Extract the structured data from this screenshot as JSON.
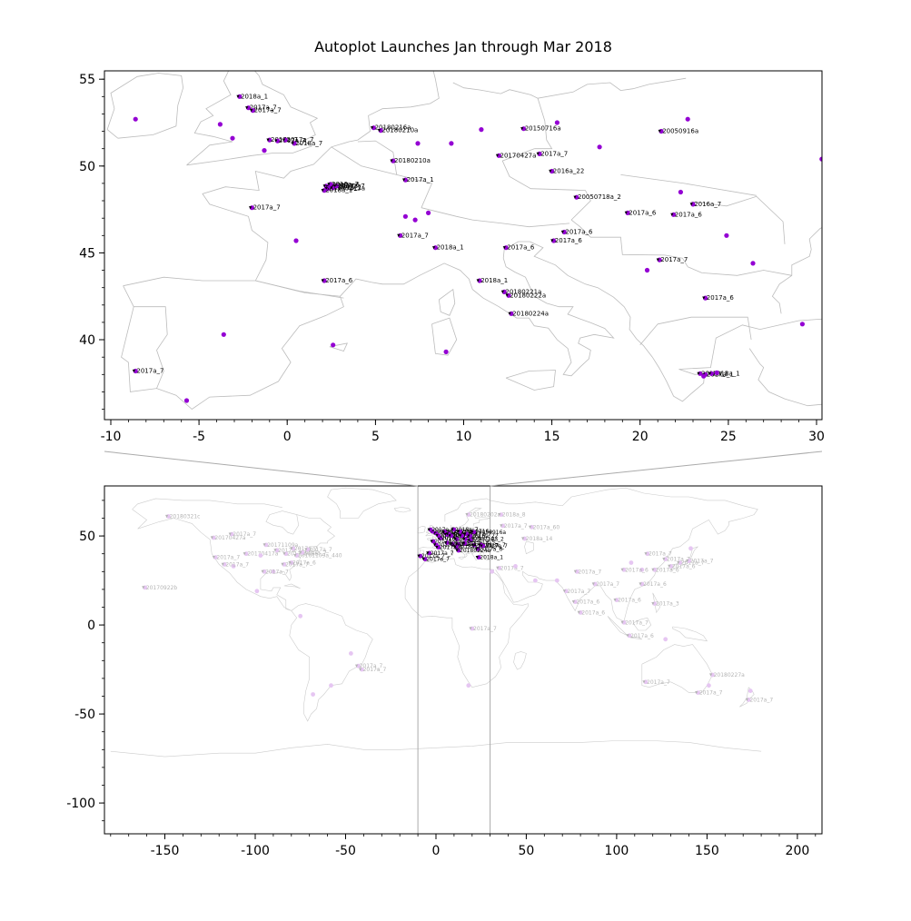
{
  "title": "Autoplot Launches Jan through Mar 2018",
  "colors": {
    "point": "#9400d3",
    "point_faded": "#e6c6f2",
    "label": "#000000",
    "label_faded": "#b5b5b5",
    "map_line": "#bcbcbc",
    "map_line_faint": "#cccccc",
    "zoom_line": "#aaaaaa",
    "axis": "#000000"
  },
  "chart_data": [
    {
      "type": "scatter",
      "name": "europe_detail",
      "title": "Autoplot Launches Jan through Mar 2018",
      "xlim": [
        -10.36,
        30.31
      ],
      "ylim": [
        35.4,
        55.48
      ],
      "xticks": [
        -10,
        -5,
        0,
        5,
        10,
        15,
        20,
        25,
        30
      ],
      "yticks": [
        40,
        45,
        50,
        55
      ],
      "x_minor_step": 1,
      "y_minor_step": 1,
      "grid": false,
      "points": [
        {
          "x": -2.7,
          "y": 54.0,
          "l": "2018a_1"
        },
        {
          "x": -2.2,
          "y": 53.35,
          "l": "2017a_7"
        },
        {
          "x": -1.95,
          "y": 53.2,
          "l": "2017a_7"
        },
        {
          "x": -3.8,
          "y": 52.4
        },
        {
          "x": -8.6,
          "y": 52.7
        },
        {
          "x": -3.1,
          "y": 51.6
        },
        {
          "x": -1.0,
          "y": 51.5,
          "l": "2017a_7"
        },
        {
          "x": -0.55,
          "y": 51.45,
          "l": "2017a_7"
        },
        {
          "x": -0.1,
          "y": 51.5,
          "l": "2017a_7"
        },
        {
          "x": 0.4,
          "y": 51.3,
          "l": "2018a_7"
        },
        {
          "x": -1.3,
          "y": 50.9
        },
        {
          "x": 4.9,
          "y": 52.2,
          "l": "20180216a"
        },
        {
          "x": 5.3,
          "y": 52.05,
          "l": "20180210a"
        },
        {
          "x": 6.0,
          "y": 50.3,
          "l": "20180210a"
        },
        {
          "x": 6.7,
          "y": 49.2,
          "l": "2017a_1"
        },
        {
          "x": 7.4,
          "y": 51.3
        },
        {
          "x": 9.3,
          "y": 51.3
        },
        {
          "x": 11.0,
          "y": 52.1
        },
        {
          "x": 15.3,
          "y": 52.5
        },
        {
          "x": 13.4,
          "y": 52.15,
          "l": "20150716a"
        },
        {
          "x": 12.0,
          "y": 50.6,
          "l": "20170427a"
        },
        {
          "x": 14.3,
          "y": 50.7,
          "l": "2017a_7"
        },
        {
          "x": 15.0,
          "y": 49.7,
          "l": "2016a_22"
        },
        {
          "x": 17.7,
          "y": 51.1
        },
        {
          "x": 21.2,
          "y": 52.0,
          "l": "20050916a"
        },
        {
          "x": 22.7,
          "y": 52.7
        },
        {
          "x": 16.4,
          "y": 48.2,
          "l": "20050718a_2"
        },
        {
          "x": 2.2,
          "y": 48.85,
          "l": "2017a_7"
        },
        {
          "x": 2.35,
          "y": 48.8,
          "l": "2017a_7"
        },
        {
          "x": 2.5,
          "y": 48.9,
          "l": "2017a_6"
        },
        {
          "x": 2.3,
          "y": 48.7,
          "l": "20180213a"
        },
        {
          "x": 2.6,
          "y": 48.75,
          "l": "2017a_7"
        },
        {
          "x": 2.1,
          "y": 48.6,
          "l": "2018a_1"
        },
        {
          "x": 2.8,
          "y": 48.85,
          "l": "2017a_7"
        },
        {
          "x": 2.45,
          "y": 48.95,
          "l": "2016a_7"
        },
        {
          "x": -2.0,
          "y": 47.6,
          "l": "2017a_7"
        },
        {
          "x": 0.5,
          "y": 45.7
        },
        {
          "x": 6.7,
          "y": 47.1
        },
        {
          "x": 7.25,
          "y": 46.9
        },
        {
          "x": 8.0,
          "y": 47.3
        },
        {
          "x": 6.4,
          "y": 46.0,
          "l": "2017a_7"
        },
        {
          "x": 8.4,
          "y": 45.3,
          "l": "2018a_1"
        },
        {
          "x": 12.4,
          "y": 45.3,
          "l": "2017a_6"
        },
        {
          "x": 15.1,
          "y": 45.7,
          "l": "2017a_6"
        },
        {
          "x": 15.7,
          "y": 46.2,
          "l": "2017a_6"
        },
        {
          "x": 19.3,
          "y": 47.3,
          "l": "2017a_6"
        },
        {
          "x": 21.9,
          "y": 47.2,
          "l": "2017a_6"
        },
        {
          "x": 23.0,
          "y": 47.8,
          "l": "2016a_7"
        },
        {
          "x": 22.3,
          "y": 48.5
        },
        {
          "x": 24.9,
          "y": 46.0
        },
        {
          "x": 26.4,
          "y": 44.4
        },
        {
          "x": 21.1,
          "y": 44.6,
          "l": "2017a_7"
        },
        {
          "x": 20.4,
          "y": 44.0
        },
        {
          "x": 23.7,
          "y": 42.4,
          "l": "2017a_6"
        },
        {
          "x": 29.2,
          "y": 40.9
        },
        {
          "x": 30.3,
          "y": 50.4
        },
        {
          "x": 2.1,
          "y": 43.4,
          "l": "2017a_6"
        },
        {
          "x": 10.9,
          "y": 43.4,
          "l": "2018a_1"
        },
        {
          "x": 12.3,
          "y": 42.75,
          "l": "20180221a"
        },
        {
          "x": 12.55,
          "y": 42.55,
          "l": "20180222a"
        },
        {
          "x": 12.7,
          "y": 41.5,
          "l": "20180224a"
        },
        {
          "x": -8.6,
          "y": 38.2,
          "l": "2017a_7"
        },
        {
          "x": -5.7,
          "y": 36.5
        },
        {
          "x": -3.6,
          "y": 40.3
        },
        {
          "x": 2.6,
          "y": 39.7
        },
        {
          "x": 9.0,
          "y": 39.3
        },
        {
          "x": 23.4,
          "y": 38.05,
          "l": "2018a_1"
        },
        {
          "x": 23.7,
          "y": 38.0,
          "l": "2017a_1"
        },
        {
          "x": 24.05,
          "y": 38.05,
          "l": "2018a_1"
        },
        {
          "x": 23.6,
          "y": 37.9
        },
        {
          "x": 24.35,
          "y": 38.1
        }
      ]
    },
    {
      "type": "scatter",
      "name": "world_overview",
      "xlim": [
        -183.4,
        213.6
      ],
      "ylim": [
        -117.3,
        78.1
      ],
      "xticks": [
        -150,
        -100,
        -50,
        0,
        50,
        100,
        150,
        200
      ],
      "yticks": [
        -100,
        -50,
        0,
        50
      ],
      "x_minor_step": 10,
      "y_minor_step": 10,
      "grid": false,
      "zoom_region": {
        "lon_min": -10,
        "lon_max": 30
      },
      "points_highlight": [
        {
          "x": -8.6,
          "y": 38.7,
          "l": "2017a_7"
        },
        {
          "x": -6.0,
          "y": 37.0,
          "l": "2017a_7"
        },
        {
          "x": -3.7,
          "y": 40.4,
          "l": "2017a_7"
        },
        {
          "x": -0.1,
          "y": 51.5,
          "l": "2017a_7"
        },
        {
          "x": -1.9,
          "y": 52.5,
          "l": "2018a_1"
        },
        {
          "x": -3.0,
          "y": 53.5,
          "l": "2017a_7"
        },
        {
          "x": 2.3,
          "y": 48.9,
          "l": "2017a_7"
        },
        {
          "x": 2.5,
          "y": 48.7,
          "l": "20180213a"
        },
        {
          "x": 1.5,
          "y": 50.2,
          "l": "2017a_7"
        },
        {
          "x": 4.8,
          "y": 52.4,
          "l": "20180210a"
        },
        {
          "x": 5.1,
          "y": 51.9,
          "l": "20180216a"
        },
        {
          "x": 6.1,
          "y": 50.8,
          "l": "2017a_1"
        },
        {
          "x": 7.2,
          "y": 51.1,
          "l": "2017a_7"
        },
        {
          "x": 8.5,
          "y": 50.1,
          "l": "2017a_7"
        },
        {
          "x": 9.9,
          "y": 53.6,
          "l": "2018a_7"
        },
        {
          "x": 11.5,
          "y": 48.2,
          "l": "2017a_7"
        },
        {
          "x": 13.4,
          "y": 52.5,
          "l": "20150716a"
        },
        {
          "x": 14.4,
          "y": 50.1,
          "l": "2017a_7"
        },
        {
          "x": 16.4,
          "y": 48.2,
          "l": "20050718a_2"
        },
        {
          "x": 17.0,
          "y": 51.1,
          "l": "2017a_7"
        },
        {
          "x": 19.1,
          "y": 47.5,
          "l": "2017a_6"
        },
        {
          "x": 21.0,
          "y": 52.2,
          "l": "20050916a"
        },
        {
          "x": 21.1,
          "y": 44.8,
          "l": "2017a_7"
        },
        {
          "x": 23.3,
          "y": 42.7,
          "l": "2017a_6"
        },
        {
          "x": 23.7,
          "y": 38.0,
          "l": "2018a_1"
        },
        {
          "x": 12.5,
          "y": 41.9,
          "l": "20180224a"
        },
        {
          "x": 11.3,
          "y": 43.8,
          "l": "2018a_1"
        },
        {
          "x": 9.2,
          "y": 45.5,
          "l": "2018a_1"
        },
        {
          "x": 12.3,
          "y": 45.4,
          "l": "2017a_6"
        },
        {
          "x": 16.0,
          "y": 45.8,
          "l": "2017a_6"
        },
        {
          "x": 6.2,
          "y": 46.2,
          "l": "2017a_7"
        },
        {
          "x": -1.5,
          "y": 47.0,
          "l": "2017a_7"
        },
        {
          "x": 0.2,
          "y": 45.0,
          "l": "2017a_6"
        },
        {
          "x": 1.4,
          "y": 43.6,
          "l": "2017a_6"
        },
        {
          "x": 25.0,
          "y": 45.0,
          "l": "2016a_7"
        },
        {
          "x": 26.1,
          "y": 44.4,
          "l": "2017a_7"
        },
        {
          "x": 19.0,
          "y": 50.0,
          "l": "2016a_22"
        }
      ],
      "points_faded": [
        {
          "x": -148,
          "y": 61,
          "l": "20180321c"
        },
        {
          "x": -123,
          "y": 49,
          "l": "20170427a"
        },
        {
          "x": -113,
          "y": 51,
          "l": "2017a_7"
        },
        {
          "x": -105,
          "y": 40,
          "l": "20170417a"
        },
        {
          "x": -97,
          "y": 39
        },
        {
          "x": -94,
          "y": 45,
          "l": "20171109a"
        },
        {
          "x": -88,
          "y": 42,
          "l": "2017a_7"
        },
        {
          "x": -83,
          "y": 40,
          "l": "20170509a"
        },
        {
          "x": -79,
          "y": 43,
          "l": "2017a_7"
        },
        {
          "x": -77,
          "y": 39,
          "l": "20161109a_440"
        },
        {
          "x": -74,
          "y": 40.7,
          "l": "2017a_7"
        },
        {
          "x": -71,
          "y": 42.4,
          "l": "2017a_7"
        },
        {
          "x": -80,
          "y": 35,
          "l": "2017a_6"
        },
        {
          "x": -84,
          "y": 34,
          "l": "2017a_7"
        },
        {
          "x": -90,
          "y": 30
        },
        {
          "x": -95,
          "y": 30,
          "l": "2017a_7"
        },
        {
          "x": -112,
          "y": 33
        },
        {
          "x": -117,
          "y": 34,
          "l": "2017a_7"
        },
        {
          "x": -122,
          "y": 38,
          "l": "2017a_7"
        },
        {
          "x": -161,
          "y": 21,
          "l": "20170922b"
        },
        {
          "x": -99,
          "y": 19
        },
        {
          "x": -75,
          "y": 5
        },
        {
          "x": -47,
          "y": -16
        },
        {
          "x": -43,
          "y": -23,
          "l": "2017a_7"
        },
        {
          "x": -41,
          "y": -25,
          "l": "2017a_7"
        },
        {
          "x": -58,
          "y": -34
        },
        {
          "x": -68,
          "y": -39
        },
        {
          "x": 20,
          "y": -2,
          "l": "2017a_7"
        },
        {
          "x": 18,
          "y": -34
        },
        {
          "x": 31,
          "y": 30
        },
        {
          "x": 35,
          "y": 32,
          "l": "2017a_7"
        },
        {
          "x": 44,
          "y": 33
        },
        {
          "x": 18,
          "y": 62,
          "l": "20180202a"
        },
        {
          "x": 36,
          "y": 62,
          "l": "2018a_8"
        },
        {
          "x": 53,
          "y": 55,
          "l": "2017a_60"
        },
        {
          "x": 49,
          "y": 48.5,
          "l": "2018a_14"
        },
        {
          "x": 37,
          "y": 55.7,
          "l": "2017a_7"
        },
        {
          "x": 55,
          "y": 25
        },
        {
          "x": 72,
          "y": 19,
          "l": "2017a_7"
        },
        {
          "x": 77,
          "y": 13,
          "l": "2017a_6"
        },
        {
          "x": 80,
          "y": 7,
          "l": "2017a_6"
        },
        {
          "x": 88,
          "y": 23,
          "l": "2017a_7"
        },
        {
          "x": 78,
          "y": 30,
          "l": "2017a_7"
        },
        {
          "x": 67,
          "y": 25
        },
        {
          "x": 100,
          "y": 14,
          "l": "2017a_6"
        },
        {
          "x": 104,
          "y": 1.4,
          "l": "2017a_7"
        },
        {
          "x": 107,
          "y": -6,
          "l": "2017a_6"
        },
        {
          "x": 114,
          "y": 23,
          "l": "2017a_6"
        },
        {
          "x": 117,
          "y": 40,
          "l": "2017a_7"
        },
        {
          "x": 121,
          "y": 31,
          "l": "2017a_6"
        },
        {
          "x": 114,
          "y": 31
        },
        {
          "x": 104,
          "y": 31,
          "l": "2017a_6"
        },
        {
          "x": 108,
          "y": 35
        },
        {
          "x": 127,
          "y": 37,
          "l": "2017a_7"
        },
        {
          "x": 130,
          "y": 33,
          "l": "2017a_6"
        },
        {
          "x": 135,
          "y": 35,
          "l": "2017a_7"
        },
        {
          "x": 140,
          "y": 36,
          "l": "2017a_7"
        },
        {
          "x": 141,
          "y": 43
        },
        {
          "x": 121,
          "y": 12,
          "l": "2017a_3"
        },
        {
          "x": 127,
          "y": -8
        },
        {
          "x": 153,
          "y": -28,
          "l": "20180227a"
        },
        {
          "x": 151,
          "y": -34
        },
        {
          "x": 145,
          "y": -38,
          "l": "2017a_7"
        },
        {
          "x": 116,
          "y": -32,
          "l": "2017a_7"
        },
        {
          "x": 174,
          "y": -37
        },
        {
          "x": 173,
          "y": -42,
          "l": "2017a_7"
        }
      ]
    }
  ]
}
